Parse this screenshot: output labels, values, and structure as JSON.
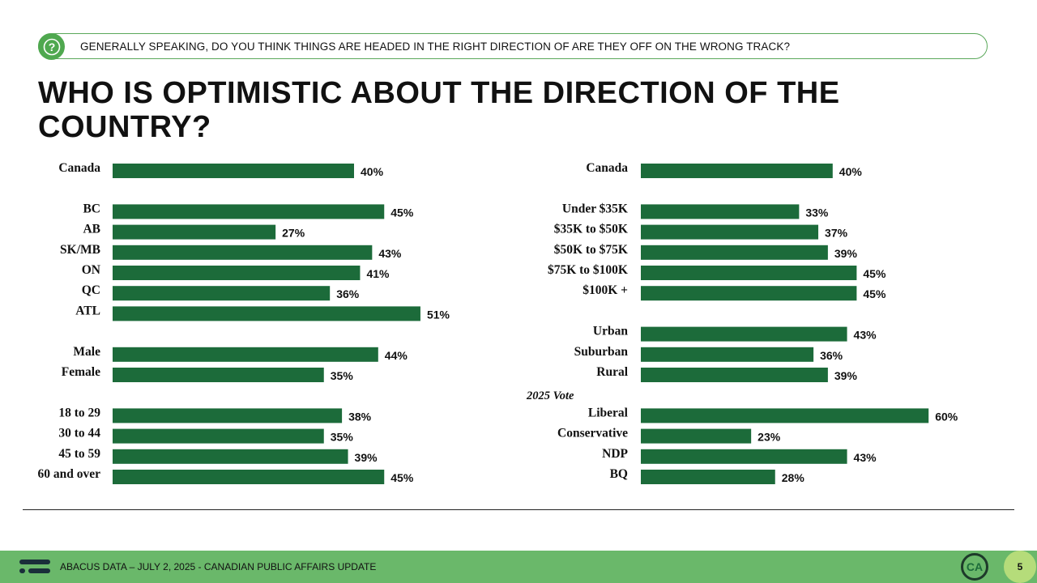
{
  "question": {
    "icon": "question-circle-icon",
    "text": "GENERALLY SPEAKING, DO YOU THINK THINGS ARE HEADED IN THE RIGHT DIRECTION OF ARE THEY OFF ON THE WRONG TRACK?"
  },
  "title": "WHO IS OPTIMISTIC ABOUT THE DIRECTION OF THE COUNTRY?",
  "colors": {
    "bar": "#1c6b3a",
    "accent": "#6ab86a",
    "page_badge": "#b5dc7a"
  },
  "chart_data": [
    {
      "type": "bar",
      "orientation": "horizontal",
      "value_unit": "%",
      "xlim": [
        0,
        100
      ],
      "categories": [
        "Canada",
        "BC",
        "AB",
        "SK/MB",
        "ON",
        "QC",
        "ATL",
        "Male",
        "Female",
        "18 to 29",
        "30 to 44",
        "45 to 59",
        "60 and over"
      ],
      "values": [
        40,
        45,
        27,
        43,
        41,
        36,
        51,
        44,
        35,
        38,
        35,
        39,
        45
      ],
      "labels": [
        "40%",
        "45%",
        "27%",
        "43%",
        "41%",
        "36%",
        "51%",
        "44%",
        "35%",
        "38%",
        "35%",
        "39%",
        "45%"
      ],
      "rows": [
        0,
        2,
        3,
        4,
        5,
        6,
        7,
        9,
        10,
        12,
        13,
        14,
        15
      ]
    },
    {
      "type": "bar",
      "orientation": "horizontal",
      "value_unit": "%",
      "xlim": [
        0,
        100
      ],
      "categories": [
        "Canada",
        "Under $35K",
        "$35K to $50K",
        "$50K to $75K",
        "$75K to $100K",
        "$100K +",
        "Urban",
        "Suburban",
        "Rural",
        "Liberal",
        "Conservative",
        "NDP",
        "BQ"
      ],
      "values": [
        40,
        33,
        37,
        39,
        45,
        45,
        43,
        36,
        39,
        60,
        23,
        43,
        28
      ],
      "labels": [
        "40%",
        "33%",
        "37%",
        "39%",
        "45%",
        "45%",
        "43%",
        "36%",
        "39%",
        "60%",
        "23%",
        "43%",
        "28%"
      ],
      "rows": [
        0,
        2,
        3,
        4,
        5,
        6,
        8,
        9,
        10,
        12,
        13,
        14,
        15
      ],
      "group_labels": [
        {
          "text": "2025 Vote",
          "row": 11
        }
      ]
    }
  ],
  "footer": {
    "logo_icon": "abacus-logo-icon",
    "text": "ABACUS DATA – JULY 2, 2025 - CANADIAN PUBLIC AFFAIRS UPDATE",
    "badge": "CA",
    "page_number": "5"
  }
}
